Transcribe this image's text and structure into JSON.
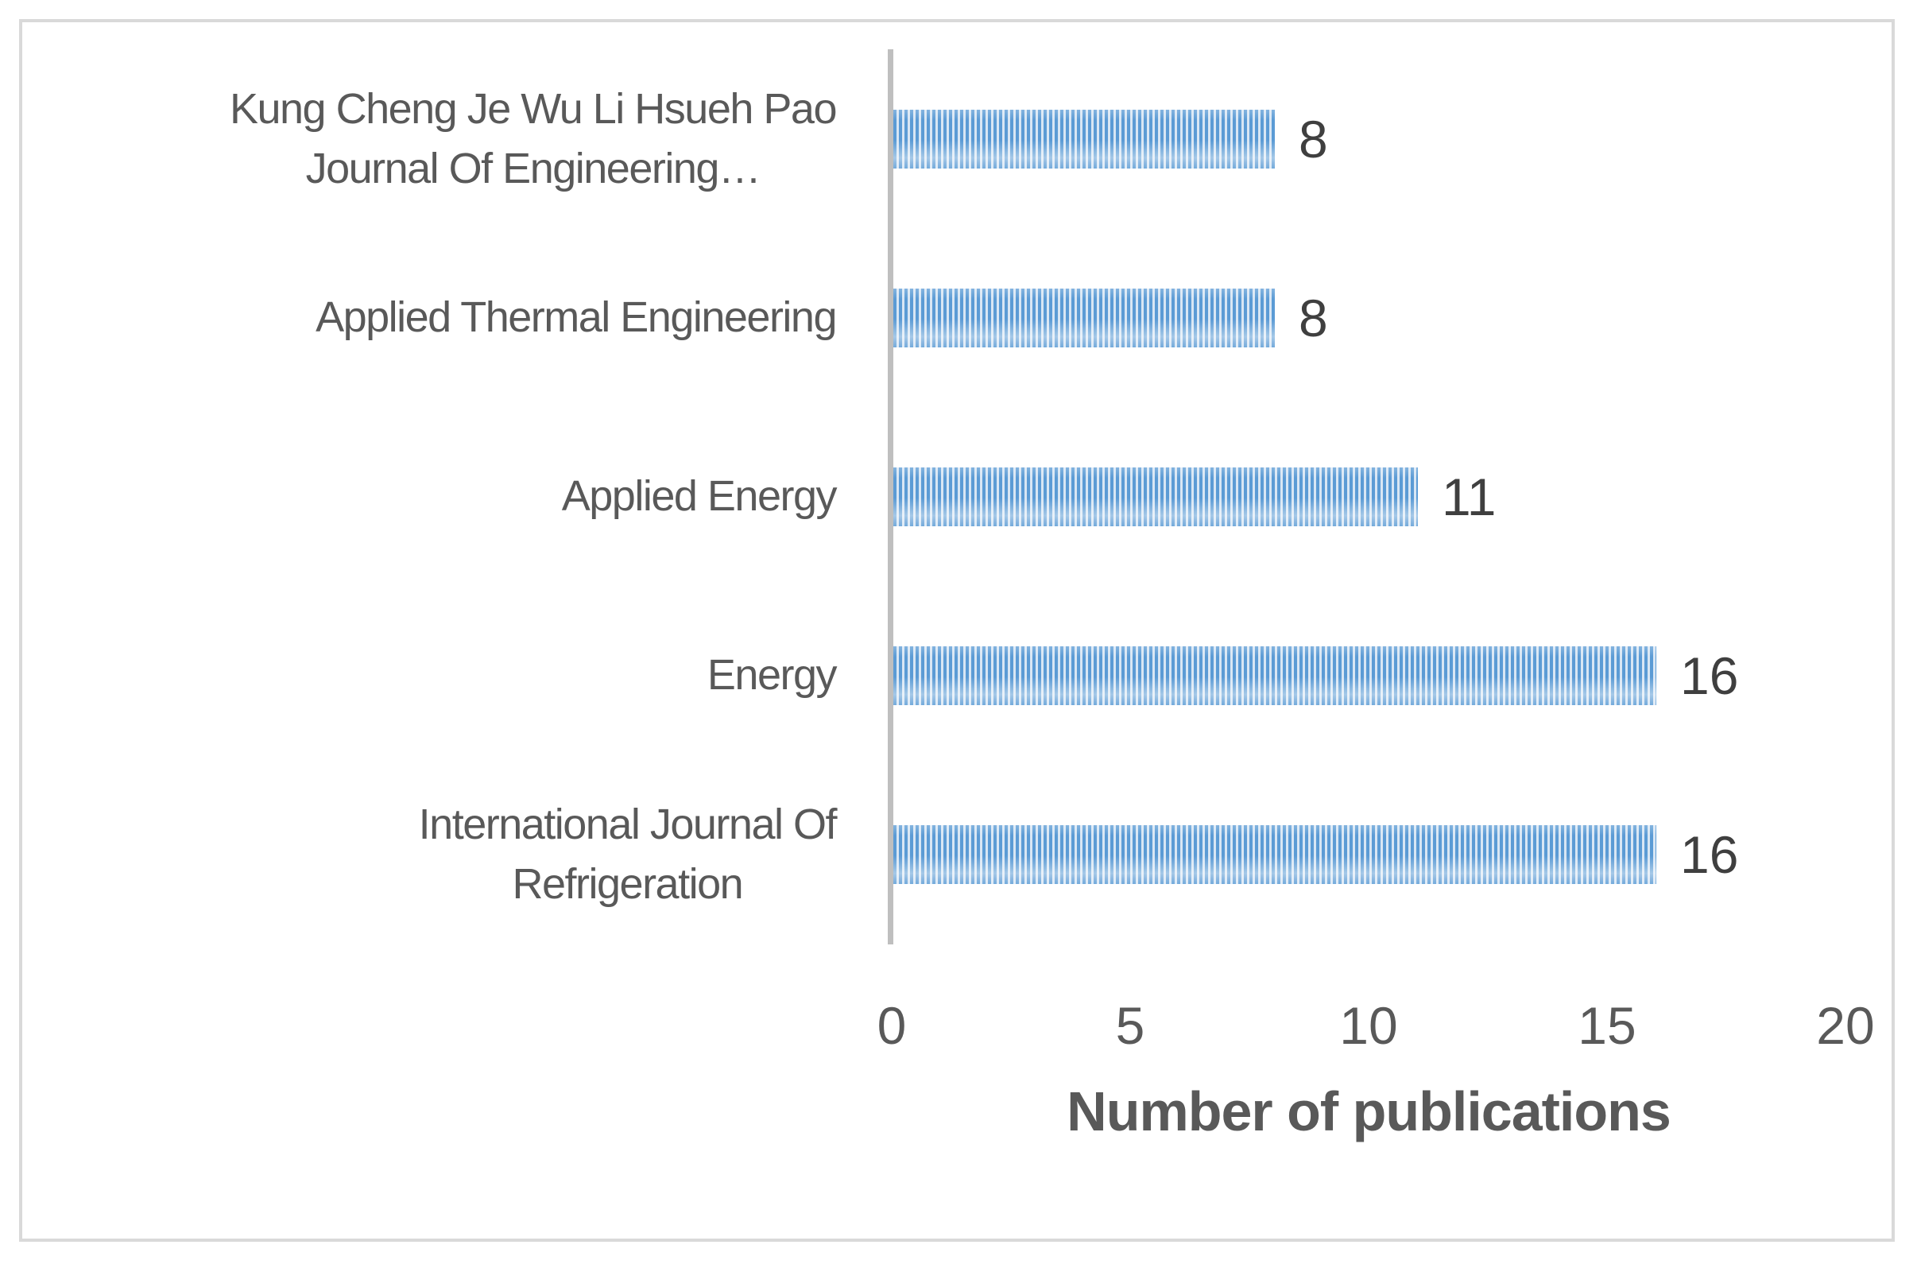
{
  "chart_data": {
    "type": "bar",
    "orientation": "horizontal",
    "title": "",
    "xlabel": "Number of publications",
    "ylabel": "",
    "xlim": [
      0,
      20
    ],
    "xticks": [
      "0",
      "5",
      "10",
      "15",
      "20"
    ],
    "grid": false,
    "legend_position": "none",
    "categories": [
      "Kung Cheng Je Wu Li Hsueh Pao Journal Of Engineering…",
      "Applied Thermal Engineering",
      "Applied Energy",
      "Energy",
      "International Journal Of Refrigeration"
    ],
    "values": [
      8,
      8,
      11,
      16,
      16
    ],
    "rows": [
      {
        "label": "Kung Cheng Je Wu Li Hsueh Pao Journal Of Engineering…",
        "lines": [
          "Kung Cheng Je Wu Li Hsueh Pao",
          "Journal Of Engineering…"
        ],
        "value": 8,
        "data_label": "8"
      },
      {
        "label": "Applied Thermal Engineering",
        "lines": [
          "Applied Thermal Engineering"
        ],
        "value": 8,
        "data_label": "8"
      },
      {
        "label": "Applied Energy",
        "lines": [
          "Applied Energy"
        ],
        "value": 11,
        "data_label": "11"
      },
      {
        "label": "Energy",
        "lines": [
          "Energy"
        ],
        "value": 16,
        "data_label": "16"
      },
      {
        "label": "International Journal Of Refrigeration",
        "lines": [
          "International Journal Of",
          "Refrigeration"
        ],
        "value": 16,
        "data_label": "16"
      }
    ]
  },
  "colors": {
    "bar_stripe_blue": "#5B9BD5",
    "bar_stripe_light": "#D8E6F4",
    "category_axis_line": "#BFBFBF",
    "outer_frame_border": "#D9D9D9",
    "axis_text": "#595959",
    "value_label_text": "#3F3F3F",
    "background": "#FFFFFF"
  }
}
